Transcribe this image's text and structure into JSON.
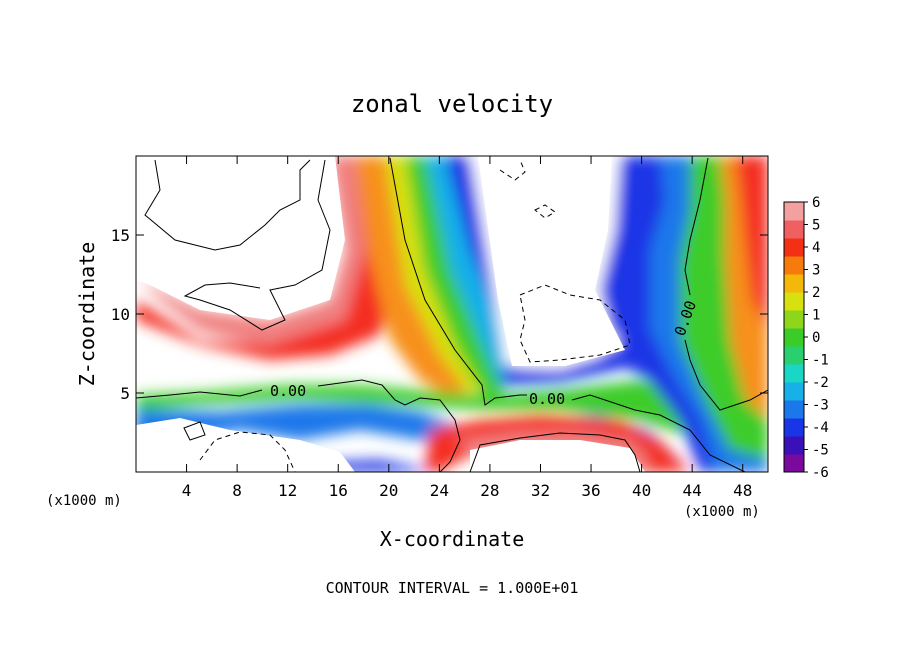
{
  "chart_data": {
    "type": "heatmap",
    "title": "zonal velocity",
    "xlabel": "X-coordinate",
    "ylabel": "Z-coordinate",
    "x_unit_left": "(x1000 m)",
    "x_unit_right": "(x1000 m)",
    "footer": "CONTOUR INTERVAL = 1.000E+01",
    "xlim": [
      0,
      50
    ],
    "ylim": [
      0,
      20
    ],
    "x_ticks": [
      4,
      8,
      12,
      16,
      20,
      24,
      28,
      32,
      36,
      40,
      44,
      48
    ],
    "y_ticks": [
      5,
      10,
      15
    ],
    "colorbar": {
      "min": -6,
      "max": 6,
      "ticks": [
        6,
        5,
        4,
        3,
        2,
        1,
        0,
        -1,
        -2,
        -3,
        -4,
        -5,
        -6
      ],
      "colors": [
        "#7a0a9e",
        "#3a10b8",
        "#1a35e6",
        "#1a78ea",
        "#18b0e8",
        "#1ad6c4",
        "#2ad070",
        "#3ccc2a",
        "#8ed61a",
        "#d8e010",
        "#f4b80a",
        "#f77a0c",
        "#f43014",
        "#f06060",
        "#f2a0a0"
      ]
    },
    "contour_labels": [
      {
        "text": "0.00",
        "x": 11.5,
        "y": 5.1
      },
      {
        "text": "0.00",
        "x": 33.0,
        "y": 4.7
      },
      {
        "text": "0.00",
        "x": 43.8,
        "y": 10.0
      }
    ]
  }
}
